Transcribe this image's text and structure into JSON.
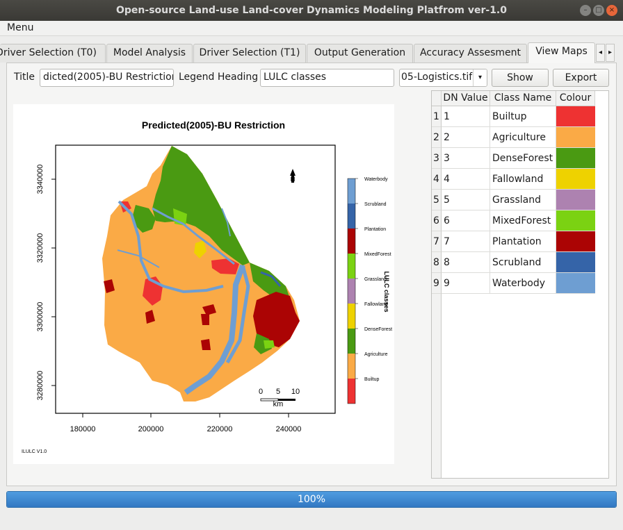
{
  "window": {
    "title": "Open-source Land-use Land-cover Dynamics Modeling Platfrom ver-1.0",
    "colors": {
      "titlebar": "#3c3b37",
      "accent": "#3278c2"
    }
  },
  "menu": {
    "label": "Menu"
  },
  "tabs": [
    {
      "label": "Driver Selection (T0)",
      "active": false
    },
    {
      "label": "Model Analysis",
      "active": false
    },
    {
      "label": "Driver Selection (T1)",
      "active": false
    },
    {
      "label": "Output Generation",
      "active": false
    },
    {
      "label": "Accuracy Assesment",
      "active": false
    },
    {
      "label": "View Maps",
      "active": true
    }
  ],
  "tab_scroll": {
    "left_icon": "chevron-left-icon",
    "right_icon": "chevron-right-icon"
  },
  "controls": {
    "title_label": "Title",
    "title_value": "dicted(2005)-BU Restriction",
    "legend_label": "Legend Heading",
    "legend_value": "LULC classes",
    "file_value": "05-Logistics.tif",
    "show_label": "Show",
    "export_label": "Export"
  },
  "map": {
    "title": "Predicted(2005)-BU Restriction",
    "y_ticks": [
      "3340000",
      "3320000",
      "3300000",
      "3280000"
    ],
    "x_ticks": [
      "180000",
      "200000",
      "220000",
      "240000"
    ],
    "legend_title": "LULC classes",
    "north_label": "N",
    "scale_ticks": [
      "0",
      "5",
      "10"
    ],
    "scale_unit": "km",
    "footer": "ILULC V1.0",
    "legend_items": [
      "Waterbody",
      "Scrubland",
      "Plantation",
      "MixedForest",
      "Grassland",
      "Fallowland",
      "DenseForest",
      "Agriculture",
      "Builtup"
    ]
  },
  "table": {
    "headers": [
      "DN Value",
      "Class Name",
      "Colour"
    ],
    "rows": [
      {
        "idx": "1",
        "dn": "1",
        "name": "Builtup",
        "color": "#ee3232"
      },
      {
        "idx": "2",
        "dn": "2",
        "name": "Agriculture",
        "color": "#faaa46"
      },
      {
        "idx": "3",
        "dn": "3",
        "name": "DenseForest",
        "color": "#4a9a12"
      },
      {
        "idx": "4",
        "dn": "4",
        "name": "Fallowland",
        "color": "#eed200"
      },
      {
        "idx": "5",
        "dn": "5",
        "name": "Grassland",
        "color": "#ad82b0"
      },
      {
        "idx": "6",
        "dn": "6",
        "name": "MixedForest",
        "color": "#7bd212"
      },
      {
        "idx": "7",
        "dn": "7",
        "name": "Plantation",
        "color": "#ab0404"
      },
      {
        "idx": "8",
        "dn": "8",
        "name": "Scrubland",
        "color": "#3564a8"
      },
      {
        "idx": "9",
        "dn": "9",
        "name": "Waterbody",
        "color": "#6e9ed2"
      }
    ]
  },
  "progress": {
    "value": 1.0,
    "text": "100%"
  }
}
